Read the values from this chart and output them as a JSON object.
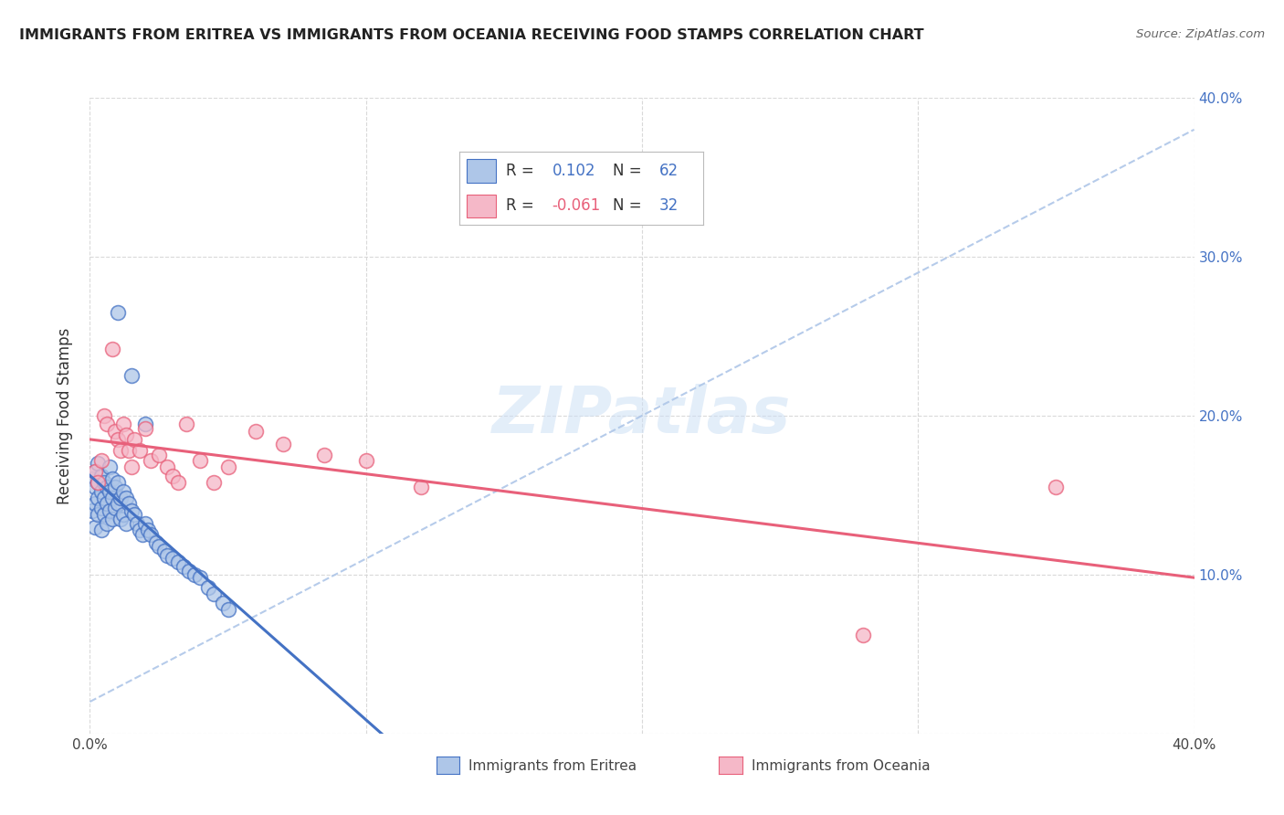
{
  "title": "IMMIGRANTS FROM ERITREA VS IMMIGRANTS FROM OCEANIA RECEIVING FOOD STAMPS CORRELATION CHART",
  "source": "Source: ZipAtlas.com",
  "ylabel": "Receiving Food Stamps",
  "xlim": [
    0.0,
    0.4
  ],
  "ylim": [
    0.0,
    0.4
  ],
  "legend_label1": "Immigrants from Eritrea",
  "legend_label2": "Immigrants from Oceania",
  "R1": 0.102,
  "N1": 62,
  "R2": -0.061,
  "N2": 32,
  "color_eritrea": "#aec6e8",
  "color_oceania": "#f5b8c8",
  "line_color_eritrea": "#4472c4",
  "line_color_oceania": "#e8607a",
  "dashed_line_color": "#aec6e8",
  "background_color": "#ffffff",
  "watermark": "ZIPatlas",
  "eritrea_x": [
    0.001,
    0.001,
    0.002,
    0.002,
    0.002,
    0.002,
    0.003,
    0.003,
    0.003,
    0.003,
    0.004,
    0.004,
    0.004,
    0.004,
    0.005,
    0.005,
    0.005,
    0.006,
    0.006,
    0.006,
    0.007,
    0.007,
    0.007,
    0.008,
    0.008,
    0.008,
    0.009,
    0.009,
    0.01,
    0.01,
    0.011,
    0.011,
    0.012,
    0.012,
    0.013,
    0.013,
    0.014,
    0.015,
    0.016,
    0.017,
    0.018,
    0.019,
    0.02,
    0.021,
    0.022,
    0.024,
    0.025,
    0.027,
    0.028,
    0.03,
    0.032,
    0.034,
    0.036,
    0.038,
    0.04,
    0.043,
    0.045,
    0.048,
    0.05,
    0.01,
    0.015,
    0.02
  ],
  "eritrea_y": [
    0.16,
    0.14,
    0.165,
    0.155,
    0.145,
    0.13,
    0.17,
    0.158,
    0.148,
    0.138,
    0.162,
    0.152,
    0.142,
    0.128,
    0.158,
    0.148,
    0.138,
    0.155,
    0.145,
    0.132,
    0.168,
    0.152,
    0.14,
    0.16,
    0.148,
    0.135,
    0.155,
    0.142,
    0.158,
    0.145,
    0.148,
    0.135,
    0.152,
    0.138,
    0.148,
    0.132,
    0.145,
    0.14,
    0.138,
    0.132,
    0.128,
    0.125,
    0.132,
    0.128,
    0.125,
    0.12,
    0.118,
    0.115,
    0.112,
    0.11,
    0.108,
    0.105,
    0.102,
    0.1,
    0.098,
    0.092,
    0.088,
    0.082,
    0.078,
    0.265,
    0.225,
    0.195
  ],
  "oceania_x": [
    0.002,
    0.003,
    0.004,
    0.005,
    0.006,
    0.008,
    0.009,
    0.01,
    0.011,
    0.012,
    0.013,
    0.014,
    0.015,
    0.016,
    0.018,
    0.02,
    0.022,
    0.025,
    0.028,
    0.03,
    0.032,
    0.035,
    0.04,
    0.045,
    0.05,
    0.06,
    0.07,
    0.085,
    0.1,
    0.12,
    0.28,
    0.35
  ],
  "oceania_y": [
    0.165,
    0.158,
    0.172,
    0.2,
    0.195,
    0.242,
    0.19,
    0.185,
    0.178,
    0.195,
    0.188,
    0.178,
    0.168,
    0.185,
    0.178,
    0.192,
    0.172,
    0.175,
    0.168,
    0.162,
    0.158,
    0.195,
    0.172,
    0.158,
    0.168,
    0.19,
    0.182,
    0.175,
    0.172,
    0.155,
    0.062,
    0.155
  ]
}
